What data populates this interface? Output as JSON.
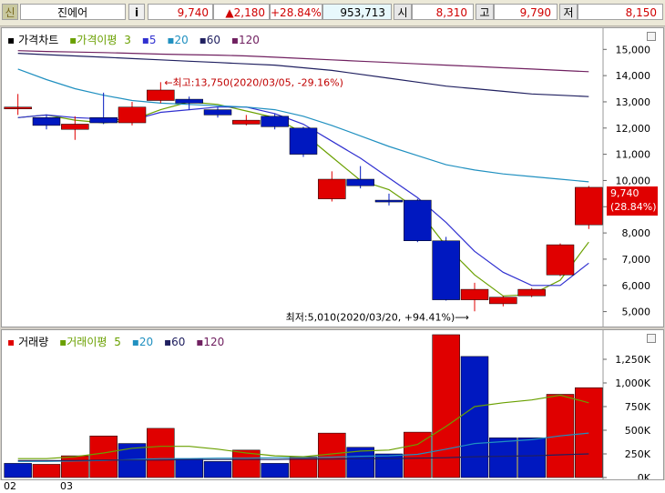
{
  "header": {
    "badge": "신",
    "stock_name": "진에어",
    "info_button": "i",
    "price": "9,740",
    "change": "▲2,180",
    "change_rate": "+28.84%",
    "volume": "953,713",
    "open_label": "시",
    "open": "8,310",
    "high_label": "고",
    "high": "9,790",
    "low_label": "저",
    "low": "8,150"
  },
  "colors": {
    "up": "#e00000",
    "down": "#0018c0",
    "ma3": "#6aa000",
    "ma5": "#3030d0",
    "ma20": "#2090c0",
    "ma60": "#202060",
    "ma120": "#702060"
  },
  "price_chart": {
    "legend": {
      "title": "가격차트",
      "ma_title": "가격이평",
      "p1": "3",
      "p2": "5",
      "p3": "20",
      "p4": "60",
      "p5": "120"
    },
    "max_annotation": "최고:13,750(2020/03/05, -29.16%)",
    "min_annotation": "최저:5,010(2020/03/20, +94.41%)",
    "current_tag_price": "9,740",
    "current_tag_rate": "(28.84%)"
  },
  "volume_chart": {
    "legend": {
      "title": "거래량",
      "ma_title": "거래이평",
      "p1": "5",
      "p2": "20",
      "p3": "60",
      "p4": "120"
    }
  },
  "x_axis": {
    "labels": [
      "02",
      "03"
    ]
  },
  "chart_data": [
    {
      "type": "candlestick",
      "title": "가격차트",
      "ylim": [
        4500,
        15600
      ],
      "yticks": [
        5000,
        6000,
        7000,
        8000,
        9000,
        10000,
        11000,
        12000,
        13000,
        14000,
        15000
      ],
      "ytick_labels": [
        "5,000",
        "6,000",
        "7,000",
        "8,000",
        "9,000",
        "10,000",
        "11,000",
        "12,000",
        "13,000",
        "14,000",
        "15,000"
      ],
      "candles": [
        {
          "o": 12800,
          "c": 12800,
          "h": 13300,
          "l": 12500
        },
        {
          "o": 12400,
          "c": 12100,
          "h": 12500,
          "l": 11950
        },
        {
          "o": 11950,
          "c": 12150,
          "h": 12450,
          "l": 11550
        },
        {
          "o": 12400,
          "c": 12200,
          "h": 13350,
          "l": 12150
        },
        {
          "o": 12200,
          "c": 12800,
          "h": 13000,
          "l": 12100
        },
        {
          "o": 13050,
          "c": 13450,
          "h": 13750,
          "l": 12950
        },
        {
          "o": 13100,
          "c": 12950,
          "h": 13200,
          "l": 12700
        },
        {
          "o": 12700,
          "c": 12500,
          "h": 12800,
          "l": 12400
        },
        {
          "o": 12150,
          "c": 12300,
          "h": 12500,
          "l": 12100
        },
        {
          "o": 12450,
          "c": 12050,
          "h": 12550,
          "l": 11950
        },
        {
          "o": 12000,
          "c": 11000,
          "h": 12050,
          "l": 10900
        },
        {
          "o": 9300,
          "c": 10050,
          "h": 10350,
          "l": 9200
        },
        {
          "o": 10050,
          "c": 9800,
          "h": 10550,
          "l": 9700
        },
        {
          "o": 9250,
          "c": 9200,
          "h": 9500,
          "l": 9050
        },
        {
          "o": 9250,
          "c": 7700,
          "h": 9300,
          "l": 7650
        },
        {
          "o": 7700,
          "c": 5450,
          "h": 7850,
          "l": 5420
        },
        {
          "o": 5450,
          "c": 5850,
          "h": 6100,
          "l": 5010
        },
        {
          "o": 5300,
          "c": 5550,
          "h": 5600,
          "l": 5200
        },
        {
          "o": 5600,
          "c": 5850,
          "h": 5900,
          "l": 5550
        },
        {
          "o": 6400,
          "c": 7550,
          "h": 7600,
          "l": 6350
        },
        {
          "o": 8310,
          "c": 9740,
          "h": 9790,
          "l": 8150
        }
      ],
      "series": [
        {
          "name": "3",
          "values": [
            12400,
            12500,
            12300,
            12200,
            12300,
            12700,
            13000,
            12900,
            12650,
            12400,
            11800,
            10900,
            10000,
            9650,
            8900,
            7500,
            6400,
            5600,
            5650,
            6200,
            7650
          ]
        },
        {
          "name": "5",
          "values": [
            12400,
            12500,
            12400,
            12350,
            12300,
            12600,
            12700,
            12800,
            12800,
            12550,
            12150,
            11500,
            10850,
            10100,
            9350,
            8400,
            7300,
            6500,
            6000,
            6000,
            6850
          ]
        },
        {
          "name": "20",
          "values": [
            14250,
            13850,
            13500,
            13250,
            13050,
            12950,
            12900,
            12850,
            12800,
            12700,
            12450,
            12100,
            11700,
            11300,
            10950,
            10600,
            10400,
            10250,
            10150,
            10050,
            9950
          ]
        },
        {
          "name": "60",
          "values": [
            14850,
            14800,
            14750,
            14700,
            14650,
            14600,
            14550,
            14500,
            14450,
            14400,
            14300,
            14200,
            14050,
            13900,
            13750,
            13600,
            13500,
            13400,
            13300,
            13250,
            13200
          ]
        },
        {
          "name": "120",
          "values": [
            14950,
            14920,
            14900,
            14880,
            14850,
            14820,
            14800,
            14780,
            14750,
            14700,
            14650,
            14600,
            14550,
            14500,
            14450,
            14400,
            14350,
            14300,
            14250,
            14200,
            14150
          ]
        }
      ]
    },
    {
      "type": "bar",
      "title": "거래량",
      "ylim": [
        0,
        1500000
      ],
      "yticks": [
        0,
        250000,
        500000,
        750000,
        1000000,
        1250000
      ],
      "ytick_labels": [
        "0K",
        "250K",
        "500K",
        "750K",
        "1,000K",
        "1,250K"
      ],
      "values": [
        150000,
        140000,
        230000,
        440000,
        360000,
        520000,
        200000,
        170000,
        290000,
        150000,
        220000,
        470000,
        320000,
        250000,
        480000,
        1510000,
        1280000,
        420000,
        420000,
        880000,
        950000
      ],
      "directions": [
        "down",
        "up",
        "up",
        "up",
        "down",
        "up",
        "down",
        "down",
        "up",
        "down",
        "up",
        "up",
        "down",
        "down",
        "up",
        "up",
        "down",
        "down",
        "down",
        "up",
        "up"
      ],
      "series": [
        {
          "name": "5",
          "values": [
            200000,
            200000,
            220000,
            260000,
            310000,
            330000,
            330000,
            300000,
            260000,
            230000,
            220000,
            250000,
            280000,
            290000,
            350000,
            540000,
            750000,
            790000,
            820000,
            870000,
            790000
          ]
        },
        {
          "name": "20",
          "values": [
            170000,
            170000,
            175000,
            180000,
            190000,
            200000,
            200000,
            205000,
            205000,
            210000,
            210000,
            215000,
            225000,
            230000,
            245000,
            300000,
            360000,
            380000,
            400000,
            440000,
            470000
          ]
        },
        {
          "name": "60",
          "values": [
            180000,
            180000,
            180000,
            185000,
            185000,
            185000,
            190000,
            190000,
            190000,
            190000,
            195000,
            195000,
            200000,
            200000,
            205000,
            210000,
            220000,
            225000,
            230000,
            240000,
            250000
          ]
        }
      ]
    }
  ]
}
